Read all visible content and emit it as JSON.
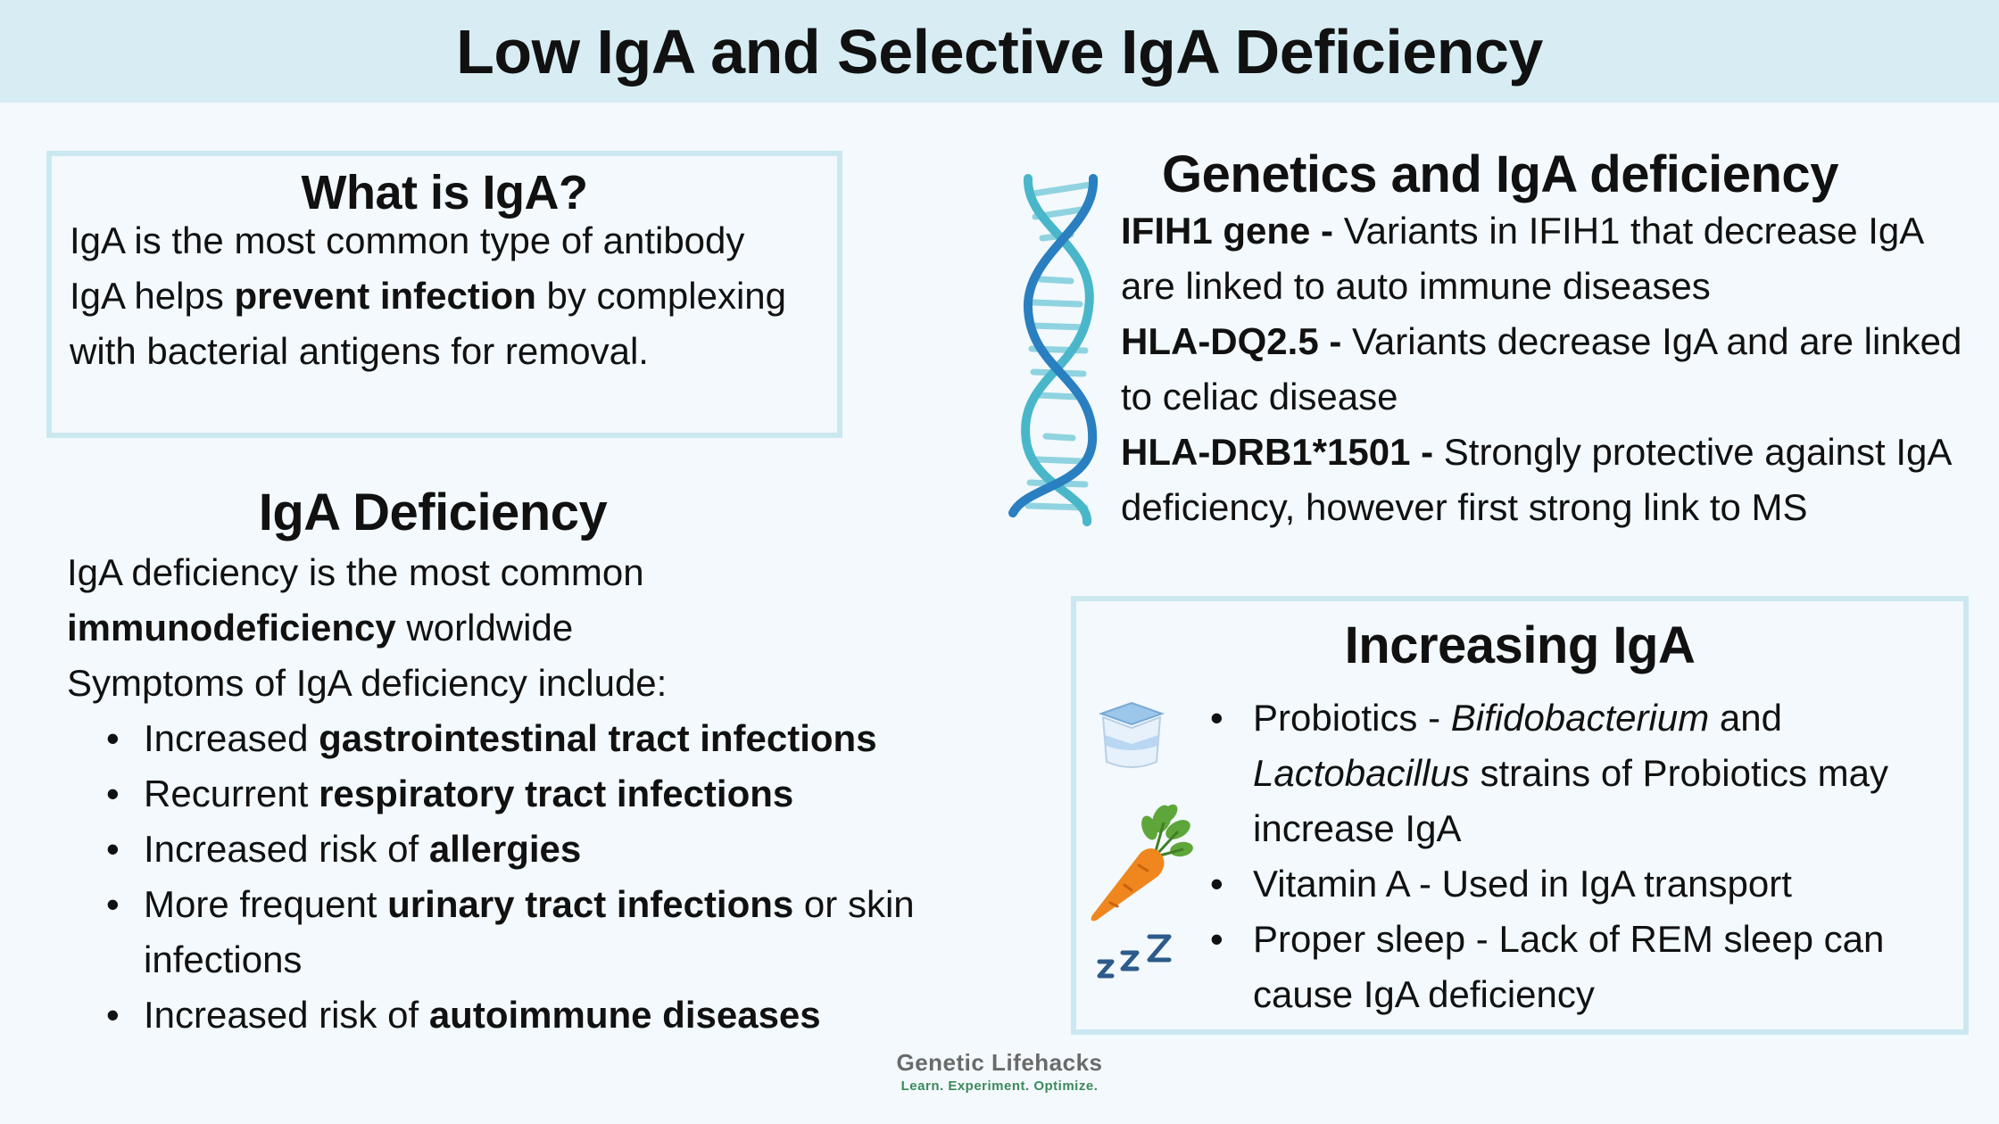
{
  "page_title": "Low IgA and Selective IgA Deficiency",
  "what_is": {
    "title": "What is IgA?",
    "line1": "IgA is the most common type of antibody",
    "line2_pre": "IgA helps ",
    "line2_bold": "prevent infection",
    "line2_post": " by complexing",
    "line3": "with bacterial antigens for removal."
  },
  "deficiency": {
    "title": "IgA Deficiency",
    "line1": "IgA deficiency is the most common",
    "line2_bold": "immunodeficiency",
    "line2_post": " worldwide",
    "line3": "Symptoms of IgA deficiency include:",
    "bullet_char": "•",
    "symptoms": [
      {
        "pre": "Increased ",
        "bold": "gastrointestinal tract infections",
        "post": ""
      },
      {
        "pre": "Recurrent ",
        "bold": "respiratory tract infections",
        "post": ""
      },
      {
        "pre": "Increased risk of ",
        "bold": "allergies",
        "post": ""
      },
      {
        "pre": "More frequent ",
        "bold": "urinary tract infections",
        "post": " or skin infections"
      },
      {
        "pre": "Increased risk of ",
        "bold": "autoimmune diseases",
        "post": ""
      }
    ]
  },
  "genetics": {
    "title": "Genetics and IgA deficiency",
    "items": [
      {
        "bold": "IFIH1 gene -",
        "text": " Variants in IFIH1 that decrease IgA are linked to auto immune diseases"
      },
      {
        "bold": "HLA-DQ2.5 -",
        "text": " Variants decrease IgA and are linked to celiac disease"
      },
      {
        "bold": "HLA-DRB1*1501 -",
        "text": " Strongly protective against IgA deficiency, however first strong link to MS"
      }
    ],
    "icon": "dna-helix-icon"
  },
  "increasing": {
    "title": "Increasing IgA",
    "bullet_char": "•",
    "probiotics_pre": "Probiotics - ",
    "probiotics_italic1": "Bifidobacterium",
    "probiotics_mid": " and ",
    "probiotics_italic2": "Lactobacillus",
    "probiotics_post": " strains of Probiotics may increase IgA",
    "vitamin_a": "Vitamin A - Used in IgA transport",
    "sleep": "Proper sleep - Lack of REM sleep can cause IgA deficiency",
    "icons": [
      "yogurt-cup-icon",
      "carrot-icon",
      "sleep-zzz-icon"
    ]
  },
  "logo": {
    "brand": "Genetic Lifehacks",
    "tagline": "Learn. Experiment. Optimize."
  },
  "colors": {
    "header_bg": "#d7edf3",
    "page_bg": "#f3f9fd",
    "box_border": "#cbe8f1",
    "dna_blue": "#2a7fc0",
    "dna_teal": "#49b7c9"
  }
}
